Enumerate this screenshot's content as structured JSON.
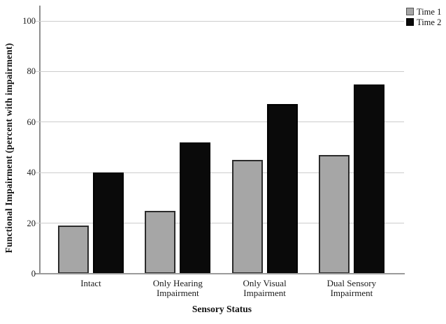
{
  "figure": {
    "background": "#ffffff"
  },
  "chart_data": {
    "type": "bar",
    "title": "",
    "categories": [
      "Intact",
      "Only Hearing Impairment",
      "Only Visual Impairment",
      "Dual Sensory Impairment"
    ],
    "categories_lines": [
      [
        "Intact"
      ],
      [
        "Only Hearing",
        "Impairment"
      ],
      [
        "Only Visual",
        "Impairment"
      ],
      [
        "Dual Sensory",
        "Impairment"
      ]
    ],
    "series": [
      {
        "name": "Time 1",
        "values": [
          19,
          25,
          45,
          47
        ],
        "color": "#a6a6a6",
        "border": "#2b2b2b"
      },
      {
        "name": "Time 2",
        "values": [
          40,
          52,
          67,
          75
        ],
        "color": "#0a0a0a",
        "border": "#000000"
      }
    ],
    "xlabel": "Sensory Status",
    "ylabel": "Functional Impairment (percent with impairment)",
    "ylim": [
      0,
      100
    ],
    "yticks": [
      0,
      20,
      40,
      60,
      80,
      100
    ],
    "grid": true,
    "gridline_color": "#cccccc",
    "axis_color": "#8f8f8f",
    "legend_position": "top-right"
  }
}
